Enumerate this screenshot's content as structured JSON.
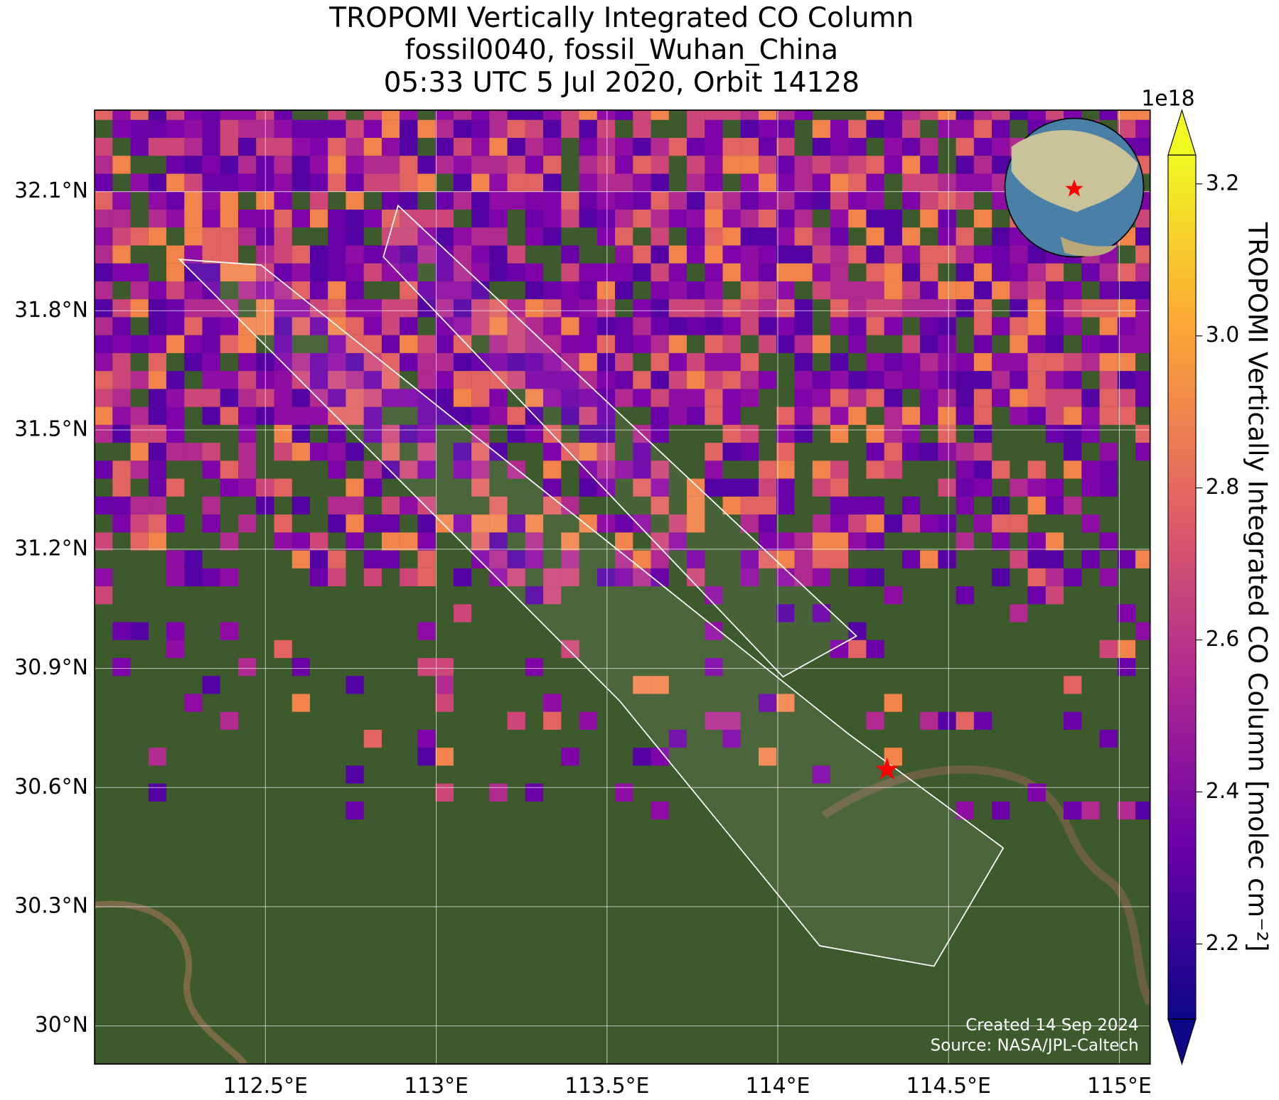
{
  "title": [
    "TROPOMI Vertically Integrated CO Column",
    "fossil0040, fossil_Wuhan_China",
    "05:33 UTC 5 Jul 2020, Orbit 14128"
  ],
  "map": {
    "xlim": [
      112.0,
      115.09
    ],
    "ylim": [
      29.904,
      32.305
    ],
    "xticks": [
      {
        "value": 112.5,
        "label": "112.5°E"
      },
      {
        "value": 113,
        "label": "113°E"
      },
      {
        "value": 113.5,
        "label": "113.5°E"
      },
      {
        "value": 114,
        "label": "114°E"
      },
      {
        "value": 114.5,
        "label": "114.5°E"
      },
      {
        "value": 115,
        "label": "115°E"
      }
    ],
    "yticks": [
      {
        "value": 30.0,
        "label": "30°N"
      },
      {
        "value": 30.3,
        "label": "30.3°N"
      },
      {
        "value": 30.6,
        "label": "30.6°N"
      },
      {
        "value": 30.9,
        "label": "30.9°N"
      },
      {
        "value": 31.2,
        "label": "31.2°N"
      },
      {
        "value": 31.5,
        "label": "31.5°N"
      },
      {
        "value": 31.8,
        "label": "31.8°N"
      },
      {
        "value": 32.1,
        "label": "32.1°N"
      }
    ],
    "grid": true,
    "marker": {
      "lon": 114.32,
      "lat": 30.645,
      "color": "#ff0000"
    }
  },
  "colorbar": {
    "lim": [
      2.101,
      3.238
    ],
    "ticks": [
      2.2,
      2.4,
      2.6,
      2.8,
      3.0,
      3.2
    ],
    "offset": "1e18",
    "label": "TROPOMI Vertically Integrated CO Column [molec cm⁻²]",
    "colormap": "plasma"
  },
  "credits": [
    "Created 14 Sep 2024",
    "Source: NASA/JPL-Caltech"
  ]
}
